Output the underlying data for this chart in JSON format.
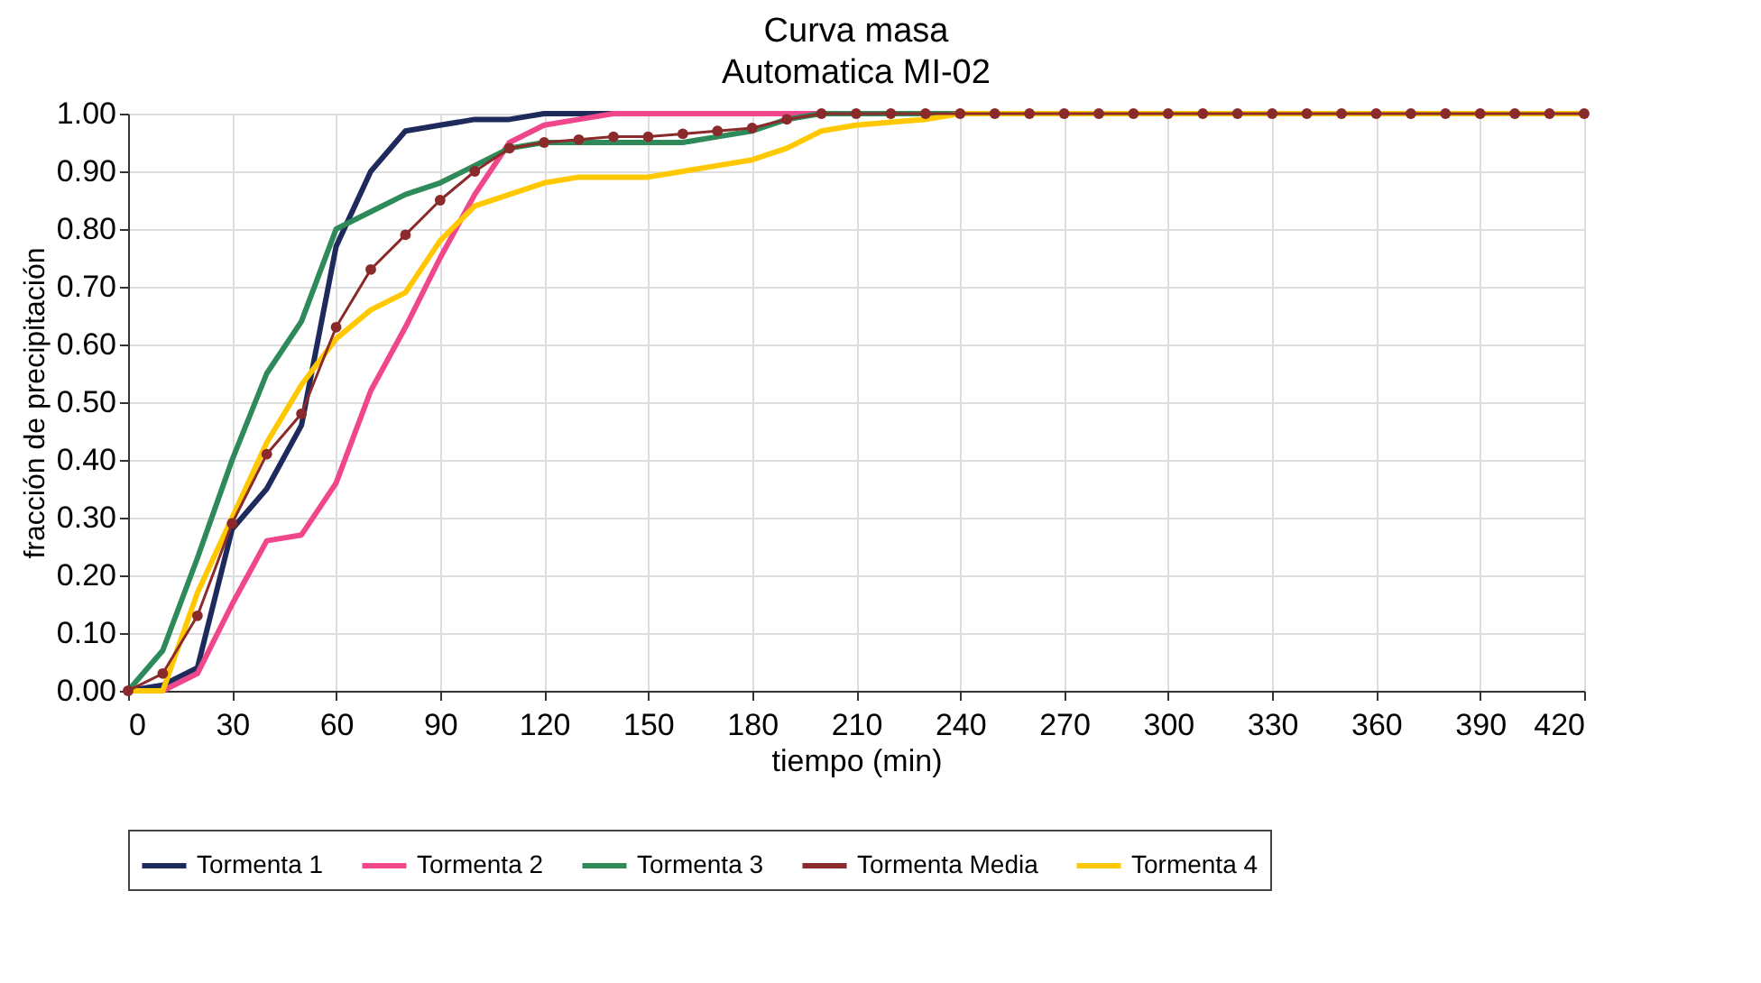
{
  "chart_data": {
    "type": "line",
    "title": "Curva masa",
    "subtitle": "Automatica MI-02",
    "xlabel": "tiempo (min)",
    "ylabel": "fracción de precipitación",
    "x": [
      0,
      10,
      20,
      30,
      40,
      50,
      60,
      70,
      80,
      90,
      100,
      110,
      120,
      130,
      140,
      150,
      160,
      170,
      180,
      190,
      200,
      210,
      220,
      230,
      240,
      250,
      260,
      270,
      280,
      290,
      300,
      310,
      320,
      330,
      340,
      350,
      360,
      370,
      380,
      390,
      400,
      410,
      420
    ],
    "series": [
      {
        "name": "Tormenta 1",
        "color": "#1f2a5c",
        "values": [
          0,
          0.01,
          0.04,
          0.28,
          0.35,
          0.46,
          0.77,
          0.9,
          0.97,
          0.98,
          0.99,
          0.99,
          1,
          1,
          1,
          null,
          null,
          null,
          null,
          null,
          null,
          null,
          null,
          null,
          null,
          null,
          null,
          null,
          null,
          null,
          null,
          null,
          null,
          null,
          null,
          null,
          null,
          null,
          null,
          null,
          null,
          null,
          null
        ]
      },
      {
        "name": "Tormenta 2",
        "color": "#f0468c",
        "values": [
          null,
          0,
          0.03,
          0.15,
          0.26,
          0.27,
          0.36,
          0.52,
          0.63,
          0.75,
          0.86,
          0.95,
          0.98,
          0.99,
          1,
          1,
          1,
          1,
          1,
          1,
          1,
          null,
          null,
          null,
          null,
          null,
          null,
          null,
          null,
          null,
          null,
          null,
          null,
          null,
          null,
          null,
          null,
          null,
          null,
          null,
          null,
          null,
          null
        ]
      },
      {
        "name": "Tormenta 3",
        "color": "#2e8a5a",
        "values": [
          0,
          0.07,
          0.23,
          0.4,
          0.55,
          0.64,
          0.8,
          0.83,
          0.86,
          0.88,
          0.91,
          0.94,
          0.95,
          0.95,
          0.95,
          0.95,
          0.95,
          0.96,
          0.97,
          0.99,
          1,
          1,
          1,
          1,
          1,
          1,
          null,
          null,
          null,
          null,
          null,
          null,
          null,
          null,
          null,
          null,
          null,
          null,
          null,
          null,
          null,
          null,
          null
        ]
      },
      {
        "name": "Tormenta Media",
        "color": "#8b2a2a",
        "marker": "circle",
        "values": [
          0,
          0.03,
          0.13,
          0.29,
          0.41,
          0.48,
          0.63,
          0.73,
          0.79,
          0.85,
          0.9,
          0.94,
          0.95,
          0.955,
          0.96,
          0.96,
          0.965,
          0.97,
          0.975,
          0.99,
          1,
          1,
          1,
          1,
          1,
          1,
          1,
          1,
          1,
          1,
          1,
          1,
          1,
          1,
          1,
          1,
          1,
          1,
          1,
          1,
          1,
          1,
          1
        ]
      },
      {
        "name": "Tormenta 4",
        "color": "#ffc800",
        "values": [
          0,
          0,
          0.17,
          0.3,
          0.43,
          0.53,
          0.61,
          0.66,
          0.69,
          0.78,
          0.84,
          0.86,
          0.88,
          0.89,
          0.89,
          0.89,
          0.9,
          0.91,
          0.92,
          0.94,
          0.97,
          0.98,
          0.985,
          0.99,
          1,
          1,
          1,
          1,
          1,
          1,
          1,
          1,
          1,
          1,
          1,
          1,
          1,
          1,
          1,
          1,
          1,
          1,
          1
        ]
      }
    ],
    "xlim": [
      0,
      420
    ],
    "xticks": [
      0,
      30,
      60,
      90,
      120,
      150,
      180,
      210,
      240,
      270,
      300,
      330,
      360,
      390,
      420
    ],
    "ylim": [
      0,
      1
    ],
    "yticks": [
      {
        "value": 0,
        "label": "0.00"
      },
      {
        "value": 0.1,
        "label": "0.10"
      },
      {
        "value": 0.2,
        "label": "0.20"
      },
      {
        "value": 0.3,
        "label": "0.30"
      },
      {
        "value": 0.4,
        "label": "0.40"
      },
      {
        "value": 0.5,
        "label": "0.50"
      },
      {
        "value": 0.6,
        "label": "0.60"
      },
      {
        "value": 0.7,
        "label": "0.70"
      },
      {
        "value": 0.8,
        "label": "0.80"
      },
      {
        "value": 0.9,
        "label": "0.90"
      },
      {
        "value": 1,
        "label": "1.00"
      }
    ],
    "grid": true,
    "legend": "bottom",
    "line_style": "solid"
  }
}
